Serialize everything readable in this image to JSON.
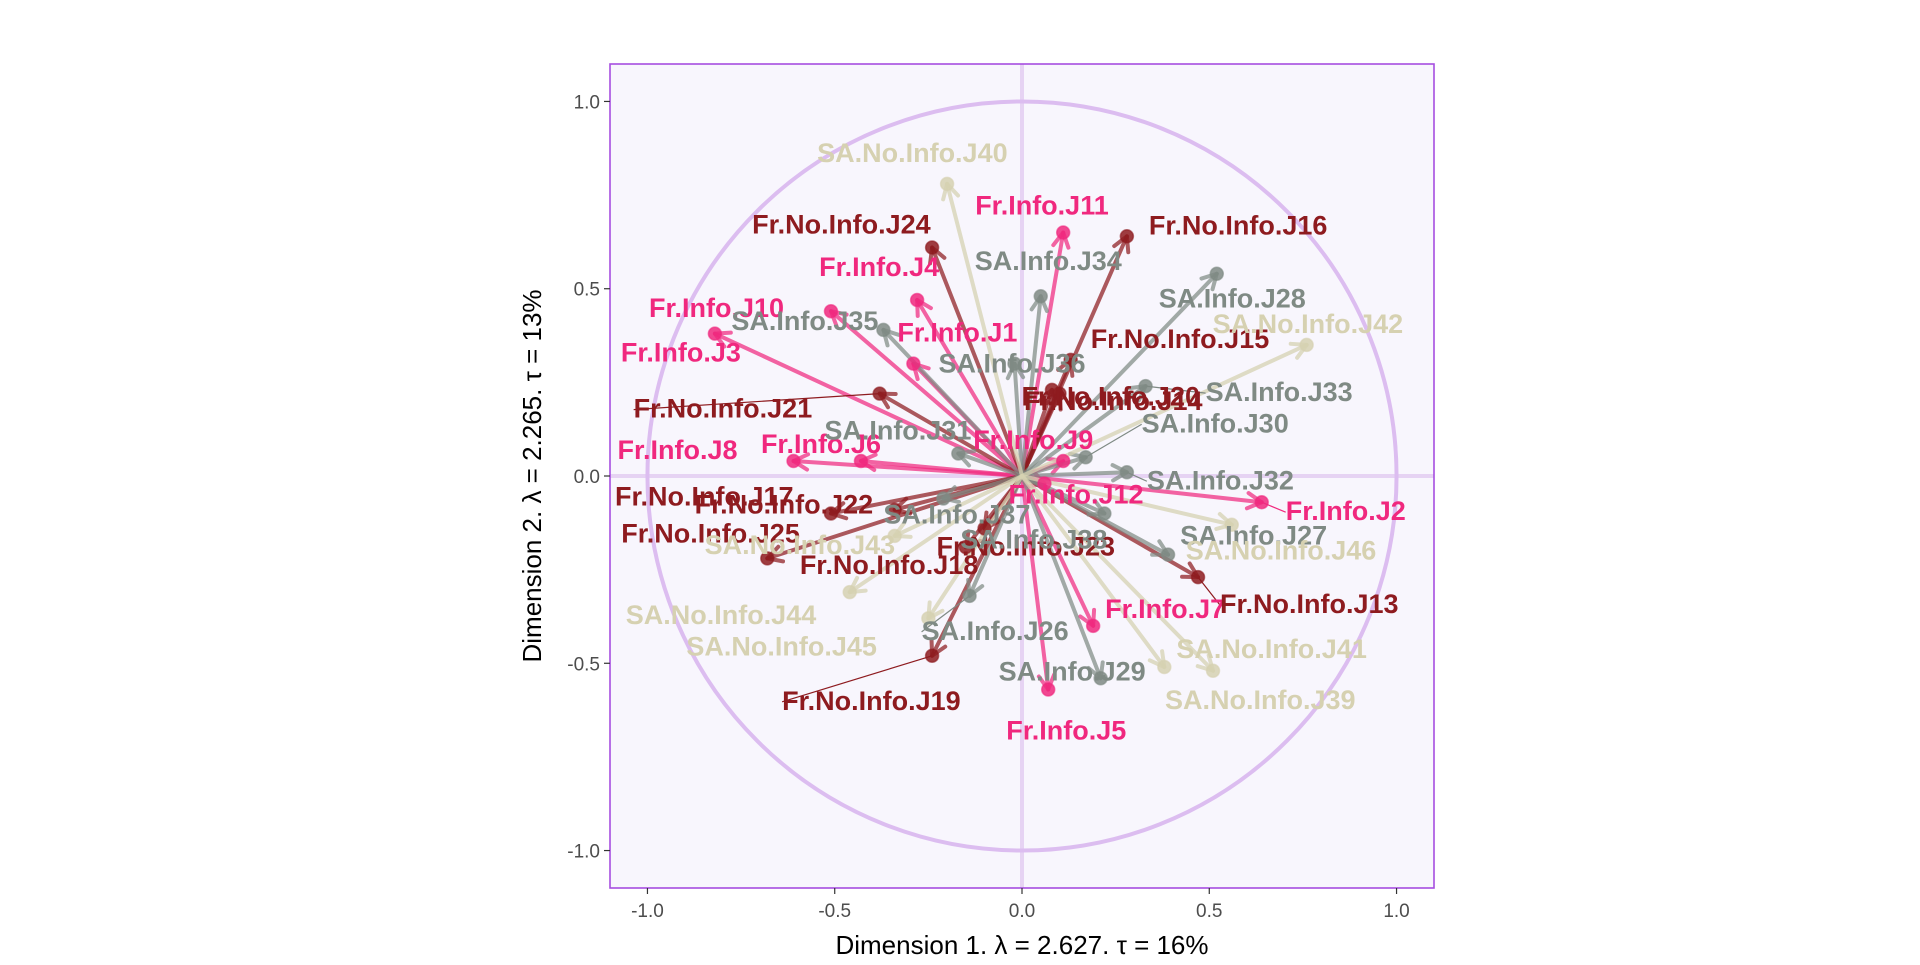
{
  "chart_data": {
    "type": "scatter",
    "subtype": "correlation-circle",
    "xlabel": "Dimension 1.   λ = 2.627.  τ = 16%",
    "ylabel": "Dimension 2.   λ = 2.265.  τ = 13%",
    "xlim": [
      -1.1,
      1.1
    ],
    "ylim": [
      -1.1,
      1.1
    ],
    "x_ticks": [
      "-1.0",
      "-0.5",
      "0.0",
      "0.5",
      "1.0"
    ],
    "y_ticks": [
      "-1.0",
      "-0.5",
      "0.0",
      "0.5",
      "1.0"
    ],
    "grid": false,
    "legend": "none",
    "unit_circle": true,
    "colors": {
      "panel_background": "#f8f6fd",
      "panel_border": "#a64ee0",
      "circle": "#dcbdf0",
      "crosshair": "#e6d3f3",
      "Fr.Info": "#f0287e",
      "Fr.No.Info": "#8e1b1f",
      "SA.Info": "#7f8a84",
      "SA.No.Info": "#d6d1b1"
    },
    "series": [
      {
        "group": "Fr.Info",
        "name": "Fr.Info.J1",
        "x": -0.29,
        "y": 0.3
      },
      {
        "group": "Fr.Info",
        "name": "Fr.Info.J2",
        "x": 0.64,
        "y": -0.07
      },
      {
        "group": "Fr.Info",
        "name": "Fr.Info.J3",
        "x": -0.82,
        "y": 0.38
      },
      {
        "group": "Fr.Info",
        "name": "Fr.Info.J4",
        "x": -0.28,
        "y": 0.47
      },
      {
        "group": "Fr.Info",
        "name": "Fr.Info.J5",
        "x": 0.07,
        "y": -0.57
      },
      {
        "group": "Fr.Info",
        "name": "Fr.Info.J6",
        "x": -0.43,
        "y": 0.04
      },
      {
        "group": "Fr.Info",
        "name": "Fr.Info.J7",
        "x": 0.19,
        "y": -0.4
      },
      {
        "group": "Fr.Info",
        "name": "Fr.Info.J8",
        "x": -0.61,
        "y": 0.04
      },
      {
        "group": "Fr.Info",
        "name": "Fr.Info.J9",
        "x": 0.11,
        "y": 0.04
      },
      {
        "group": "Fr.Info",
        "name": "Fr.Info.J10",
        "x": -0.51,
        "y": 0.44
      },
      {
        "group": "Fr.Info",
        "name": "Fr.Info.J11",
        "x": 0.11,
        "y": 0.65
      },
      {
        "group": "Fr.Info",
        "name": "Fr.Info.J12",
        "x": 0.06,
        "y": -0.02
      },
      {
        "group": "Fr.No.Info",
        "name": "Fr.No.Info.J13",
        "x": 0.47,
        "y": -0.27
      },
      {
        "group": "Fr.No.Info",
        "name": "Fr.No.Info.J14",
        "x": 0.08,
        "y": 0.23
      },
      {
        "group": "Fr.No.Info",
        "name": "Fr.No.Info.J15",
        "x": 0.13,
        "y": 0.31
      },
      {
        "group": "Fr.No.Info",
        "name": "Fr.No.Info.J16",
        "x": 0.28,
        "y": 0.64
      },
      {
        "group": "Fr.No.Info",
        "name": "Fr.No.Info.J17",
        "x": -0.51,
        "y": -0.1
      },
      {
        "group": "Fr.No.Info",
        "name": "Fr.No.Info.J18",
        "x": -0.15,
        "y": -0.19
      },
      {
        "group": "Fr.No.Info",
        "name": "Fr.No.Info.J19",
        "x": -0.24,
        "y": -0.48
      },
      {
        "group": "Fr.No.Info",
        "name": "Fr.No.Info.J20",
        "x": 0.1,
        "y": 0.22
      },
      {
        "group": "Fr.No.Info",
        "name": "Fr.No.Info.J21",
        "x": -0.38,
        "y": 0.22
      },
      {
        "group": "Fr.No.Info",
        "name": "Fr.No.Info.J22",
        "x": -0.34,
        "y": -0.09
      },
      {
        "group": "Fr.No.Info",
        "name": "Fr.No.Info.J23",
        "x": -0.1,
        "y": -0.14
      },
      {
        "group": "Fr.No.Info",
        "name": "Fr.No.Info.J24",
        "x": -0.24,
        "y": 0.61
      },
      {
        "group": "Fr.No.Info",
        "name": "Fr.No.Info.J25",
        "x": -0.68,
        "y": -0.22
      },
      {
        "group": "SA.Info",
        "name": "SA.Info.J26",
        "x": -0.14,
        "y": -0.32
      },
      {
        "group": "SA.Info",
        "name": "SA.Info.J27",
        "x": 0.39,
        "y": -0.21
      },
      {
        "group": "SA.Info",
        "name": "SA.Info.J28",
        "x": 0.52,
        "y": 0.54
      },
      {
        "group": "SA.Info",
        "name": "SA.Info.J29",
        "x": 0.21,
        "y": -0.54
      },
      {
        "group": "SA.Info",
        "name": "SA.Info.J30",
        "x": 0.17,
        "y": 0.05
      },
      {
        "group": "SA.Info",
        "name": "SA.Info.J31",
        "x": -0.17,
        "y": 0.06
      },
      {
        "group": "SA.Info",
        "name": "SA.Info.J32",
        "x": 0.28,
        "y": 0.01
      },
      {
        "group": "SA.Info",
        "name": "SA.Info.J33",
        "x": 0.33,
        "y": 0.24
      },
      {
        "group": "SA.Info",
        "name": "SA.Info.J34",
        "x": 0.05,
        "y": 0.48
      },
      {
        "group": "SA.Info",
        "name": "SA.Info.J35",
        "x": -0.37,
        "y": 0.39
      },
      {
        "group": "SA.Info",
        "name": "SA.Info.J36",
        "x": -0.02,
        "y": 0.3
      },
      {
        "group": "SA.Info",
        "name": "SA.Info.J37",
        "x": -0.21,
        "y": -0.06
      },
      {
        "group": "SA.Info",
        "name": "SA.Info.J38",
        "x": 0.22,
        "y": -0.1
      },
      {
        "group": "SA.No.Info",
        "name": "SA.No.Info.J39",
        "x": 0.51,
        "y": -0.52
      },
      {
        "group": "SA.No.Info",
        "name": "SA.No.Info.J40",
        "x": -0.2,
        "y": 0.78
      },
      {
        "group": "SA.No.Info",
        "name": "SA.No.Info.J41",
        "x": 0.38,
        "y": -0.51
      },
      {
        "group": "SA.No.Info",
        "name": "SA.No.Info.J42",
        "x": 0.76,
        "y": 0.35
      },
      {
        "group": "SA.No.Info",
        "name": "SA.No.Info.J43",
        "x": -0.34,
        "y": -0.16
      },
      {
        "group": "SA.No.Info",
        "name": "SA.No.Info.J44",
        "x": -0.46,
        "y": -0.31
      },
      {
        "group": "SA.No.Info",
        "name": "SA.No.Info.J45",
        "x": -0.25,
        "y": -0.38
      },
      {
        "group": "SA.No.Info",
        "name": "SA.No.Info.J46",
        "x": 0.56,
        "y": -0.13
      }
    ]
  }
}
